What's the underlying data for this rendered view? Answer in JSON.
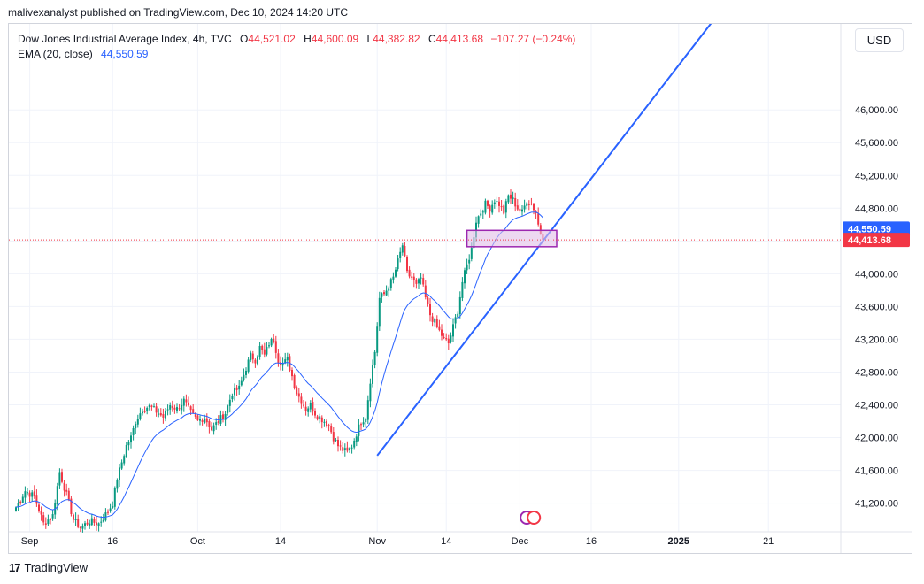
{
  "header": {
    "publisher": "malivexanalyst published on TradingView.com, Dec 10, 2024 14:20 UTC"
  },
  "legend": {
    "symbol": "Dow Jones Industrial Average Index, 4h, TVC",
    "open_label": "O",
    "open": "44,521.02",
    "high_label": "H",
    "high": "44,600.09",
    "low_label": "L",
    "low": "44,382.82",
    "close_label": "C",
    "close": "44,413.68",
    "change": "−107.27 (−0.24%)",
    "ema_label": "EMA (20, close)",
    "ema_value": "44,550.59"
  },
  "currency": "USD",
  "footer": {
    "brand": "TradingView",
    "mark": "17"
  },
  "colors": {
    "up": "#089981",
    "down": "#f23645",
    "ema": "#2962ff",
    "trendline": "#2962ff",
    "zone_fill": "#e1bee7",
    "zone_border": "#9c27b0",
    "grid": "#f0f3fa",
    "last_price": "#f23645"
  },
  "chart_data": {
    "type": "candlestick",
    "title": "Dow Jones Industrial Average Index, 4h, TVC",
    "ylim": [
      40850,
      47050
    ],
    "y_ticks": [
      "41,200.00",
      "41,600.00",
      "42,000.00",
      "42,400.00",
      "42,800.00",
      "43,200.00",
      "43,600.00",
      "44,000.00",
      "44,400.00",
      "44,800.00",
      "45,200.00",
      "45,600.00",
      "46,000.00"
    ],
    "y_tick_values": [
      41200,
      41600,
      42000,
      42400,
      42800,
      43200,
      43600,
      44000,
      44400,
      44800,
      45200,
      45600,
      46000
    ],
    "x_ticks": [
      {
        "label": "Sep",
        "index": 6
      },
      {
        "label": "16",
        "index": 42
      },
      {
        "label": "Oct",
        "index": 79
      },
      {
        "label": "14",
        "index": 115
      },
      {
        "label": "Nov",
        "index": 157
      },
      {
        "label": "14",
        "index": 187
      },
      {
        "label": "Dec",
        "index": 219
      },
      {
        "label": "16",
        "index": 250
      },
      {
        "label": "2025",
        "index": 288
      },
      {
        "label": "21",
        "index": 327
      }
    ],
    "bold_ticks": [
      "2025"
    ],
    "grid": true,
    "ema_label": "EMA (20, close)",
    "ema_last": 44550.59,
    "last_close": 44413.68,
    "last_close_label": "44,413.68",
    "ema_last_label": "44,550.59",
    "key_closes": [
      [
        0,
        41150
      ],
      [
        4,
        41350
      ],
      [
        8,
        41280
      ],
      [
        10,
        41120
      ],
      [
        12,
        40950
      ],
      [
        16,
        41050
      ],
      [
        19,
        41580
      ],
      [
        22,
        41300
      ],
      [
        25,
        41000
      ],
      [
        28,
        40900
      ],
      [
        32,
        40980
      ],
      [
        36,
        40950
      ],
      [
        40,
        41100
      ],
      [
        42,
        41200
      ],
      [
        44,
        41500
      ],
      [
        46,
        41700
      ],
      [
        48,
        41900
      ],
      [
        50,
        42000
      ],
      [
        52,
        42200
      ],
      [
        55,
        42350
      ],
      [
        58,
        42380
      ],
      [
        61,
        42320
      ],
      [
        64,
        42250
      ],
      [
        67,
        42400
      ],
      [
        70,
        42350
      ],
      [
        73,
        42450
      ],
      [
        76,
        42300
      ],
      [
        79,
        42200
      ],
      [
        82,
        42250
      ],
      [
        85,
        42100
      ],
      [
        88,
        42200
      ],
      [
        91,
        42300
      ],
      [
        94,
        42550
      ],
      [
        97,
        42600
      ],
      [
        100,
        42850
      ],
      [
        102,
        43000
      ],
      [
        104,
        42950
      ],
      [
        106,
        43100
      ],
      [
        108,
        43000
      ],
      [
        110,
        43150
      ],
      [
        112,
        43200
      ],
      [
        114,
        42950
      ],
      [
        116,
        42900
      ],
      [
        118,
        42950
      ],
      [
        120,
        42750
      ],
      [
        122,
        42550
      ],
      [
        124,
        42450
      ],
      [
        126,
        42350
      ],
      [
        128,
        42400
      ],
      [
        130,
        42300
      ],
      [
        132,
        42250
      ],
      [
        134,
        42200
      ],
      [
        136,
        42150
      ],
      [
        138,
        42000
      ],
      [
        140,
        41900
      ],
      [
        142,
        41850
      ],
      [
        144,
        41820
      ],
      [
        146,
        41900
      ],
      [
        148,
        42050
      ],
      [
        150,
        42200
      ],
      [
        152,
        42250
      ],
      [
        154,
        42700
      ],
      [
        156,
        43050
      ],
      [
        158,
        43700
      ],
      [
        160,
        43750
      ],
      [
        162,
        43850
      ],
      [
        164,
        43950
      ],
      [
        166,
        44150
      ],
      [
        168,
        44350
      ],
      [
        170,
        44000
      ],
      [
        172,
        43950
      ],
      [
        174,
        43850
      ],
      [
        176,
        43950
      ],
      [
        178,
        43700
      ],
      [
        180,
        43500
      ],
      [
        182,
        43400
      ],
      [
        184,
        43300
      ],
      [
        186,
        43200
      ],
      [
        188,
        43150
      ],
      [
        190,
        43350
      ],
      [
        192,
        43550
      ],
      [
        194,
        43900
      ],
      [
        196,
        44100
      ],
      [
        198,
        44300
      ],
      [
        200,
        44650
      ],
      [
        202,
        44750
      ],
      [
        204,
        44850
      ],
      [
        206,
        44800
      ],
      [
        208,
        44900
      ],
      [
        210,
        44850
      ],
      [
        212,
        44750
      ],
      [
        214,
        44950
      ],
      [
        216,
        44900
      ],
      [
        218,
        44800
      ],
      [
        220,
        44750
      ],
      [
        222,
        44900
      ],
      [
        224,
        44850
      ],
      [
        226,
        44750
      ],
      [
        227,
        44600
      ],
      [
        228,
        44500
      ],
      [
        229,
        44413.68
      ]
    ],
    "trendline": {
      "start": {
        "index": 157,
        "price": 41780
      },
      "end": {
        "index": 306,
        "price": 47200
      }
    },
    "zone": {
      "index_start": 196,
      "index_end": 235,
      "price_low": 44330,
      "price_high": 44530
    }
  }
}
